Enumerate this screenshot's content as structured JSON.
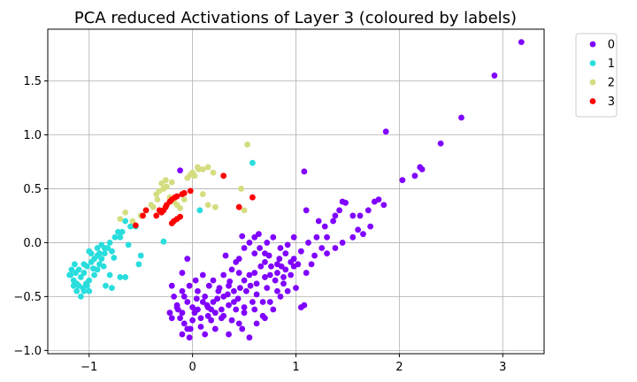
{
  "chart_data": {
    "type": "scatter",
    "title": "PCA reduced Activations of Layer 3 (coloured by labels)",
    "xlabel": "",
    "ylabel": "",
    "xlim": [
      -1.4,
      3.4
    ],
    "ylim": [
      -1.03,
      1.98
    ],
    "xticks": [
      -1,
      0,
      1,
      2,
      3
    ],
    "xtick_labels": [
      "−1",
      "0",
      "1",
      "2",
      "3"
    ],
    "yticks": [
      -1.0,
      -0.5,
      0.0,
      0.5,
      1.0,
      1.5
    ],
    "ytick_labels": [
      "−1.0",
      "−0.5",
      "0.0",
      "0.5",
      "1.0",
      "1.5"
    ],
    "grid": true,
    "legend_position": "outside-top-right",
    "series": [
      {
        "name": "0",
        "color": "#8000ff",
        "points": [
          [
            3.18,
            1.86
          ],
          [
            2.92,
            1.55
          ],
          [
            2.6,
            1.16
          ],
          [
            2.4,
            0.92
          ],
          [
            1.87,
            1.03
          ],
          [
            2.2,
            0.7
          ],
          [
            2.22,
            0.68
          ],
          [
            2.15,
            0.62
          ],
          [
            2.03,
            0.58
          ],
          [
            1.8,
            0.4
          ],
          [
            1.85,
            0.35
          ],
          [
            1.76,
            0.38
          ],
          [
            1.7,
            0.3
          ],
          [
            1.62,
            0.25
          ],
          [
            1.55,
            0.25
          ],
          [
            1.45,
            0.38
          ],
          [
            1.48,
            0.37
          ],
          [
            1.42,
            0.3
          ],
          [
            1.38,
            0.25
          ],
          [
            1.36,
            0.2
          ],
          [
            1.22,
            0.2
          ],
          [
            1.28,
            0.15
          ],
          [
            1.65,
            0.08
          ],
          [
            1.55,
            0.05
          ],
          [
            1.45,
            0.0
          ],
          [
            1.38,
            -0.05
          ],
          [
            1.3,
            -0.1
          ],
          [
            1.2,
            0.05
          ],
          [
            1.18,
            -0.12
          ],
          [
            1.1,
            0.3
          ],
          [
            1.08,
            0.66
          ],
          [
            1.12,
            0.0
          ],
          [
            1.05,
            -0.08
          ],
          [
            0.98,
            -0.15
          ],
          [
            0.9,
            -0.25
          ],
          [
            0.82,
            -0.2
          ],
          [
            0.75,
            -0.3
          ],
          [
            0.7,
            -0.18
          ],
          [
            0.6,
            -0.1
          ],
          [
            0.55,
            -0.3
          ],
          [
            0.5,
            -0.35
          ],
          [
            0.45,
            -0.28
          ],
          [
            0.4,
            -0.45
          ],
          [
            0.35,
            -0.4
          ],
          [
            0.3,
            -0.5
          ],
          [
            0.25,
            -0.45
          ],
          [
            0.2,
            -0.55
          ],
          [
            0.15,
            -0.6
          ],
          [
            0.1,
            -0.55
          ],
          [
            0.05,
            -0.62
          ],
          [
            0.0,
            -0.6
          ],
          [
            -0.05,
            -0.55
          ],
          [
            -0.1,
            -0.65
          ],
          [
            -0.15,
            -0.6
          ],
          [
            -0.12,
            -0.7
          ],
          [
            -0.08,
            -0.75
          ],
          [
            -0.02,
            -0.8
          ],
          [
            0.08,
            -0.78
          ],
          [
            0.18,
            -0.72
          ],
          [
            0.28,
            -0.7
          ],
          [
            0.38,
            -0.72
          ],
          [
            0.48,
            -0.8
          ],
          [
            0.55,
            -0.88
          ],
          [
            0.62,
            -0.75
          ],
          [
            0.7,
            -0.7
          ],
          [
            0.78,
            -0.62
          ],
          [
            0.85,
            -0.5
          ],
          [
            0.92,
            -0.45
          ],
          [
            1.0,
            -0.42
          ],
          [
            1.08,
            -0.58
          ],
          [
            1.05,
            -0.6
          ],
          [
            0.68,
            -0.55
          ],
          [
            0.72,
            -0.42
          ],
          [
            0.8,
            -0.35
          ],
          [
            0.88,
            -0.32
          ],
          [
            0.95,
            -0.3
          ],
          [
            0.62,
            -0.48
          ],
          [
            0.58,
            -0.55
          ],
          [
            0.5,
            -0.6
          ],
          [
            0.42,
            -0.62
          ],
          [
            0.35,
            -0.58
          ],
          [
            0.28,
            -0.62
          ],
          [
            0.22,
            -0.65
          ],
          [
            0.15,
            -0.68
          ],
          [
            0.08,
            -0.7
          ],
          [
            0.0,
            -0.72
          ],
          [
            -0.05,
            -0.8
          ],
          [
            -0.1,
            -0.85
          ],
          [
            -0.15,
            -0.58
          ],
          [
            -0.18,
            -0.5
          ],
          [
            -0.1,
            -0.45
          ],
          [
            -0.03,
            -0.4
          ],
          [
            0.03,
            -0.35
          ],
          [
            0.1,
            -0.3
          ],
          [
            0.2,
            -0.35
          ],
          [
            0.3,
            -0.3
          ],
          [
            0.38,
            -0.25
          ],
          [
            0.45,
            -0.15
          ],
          [
            0.5,
            -0.05
          ],
          [
            0.55,
            0.0
          ],
          [
            0.6,
            0.05
          ],
          [
            0.65,
            -0.05
          ],
          [
            0.72,
            0.0
          ],
          [
            0.78,
            0.05
          ],
          [
            0.85,
            -0.05
          ],
          [
            0.9,
            -0.1
          ],
          [
            0.95,
            -0.18
          ],
          [
            1.02,
            -0.2
          ],
          [
            0.48,
            0.06
          ],
          [
            0.42,
            -0.18
          ],
          [
            0.32,
            -0.12
          ],
          [
            -0.05,
            -0.15
          ],
          [
            -0.1,
            -0.28
          ],
          [
            -0.2,
            -0.4
          ],
          [
            -0.2,
            -0.7
          ],
          [
            -0.22,
            -0.65
          ],
          [
            -0.03,
            -0.88
          ],
          [
            0.12,
            -0.85
          ],
          [
            0.22,
            -0.8
          ],
          [
            0.35,
            -0.85
          ],
          [
            0.45,
            -0.75
          ],
          [
            0.5,
            -0.65
          ],
          [
            0.6,
            -0.62
          ],
          [
            0.68,
            -0.68
          ],
          [
            0.75,
            -0.55
          ],
          [
            0.82,
            -0.45
          ],
          [
            0.88,
            -0.38
          ],
          [
            0.98,
            -0.22
          ],
          [
            1.1,
            -0.28
          ],
          [
            1.15,
            -0.2
          ],
          [
            -0.12,
            0.67
          ],
          [
            0.02,
            -0.65
          ],
          [
            0.12,
            -0.5
          ],
          [
            0.24,
            -0.52
          ],
          [
            0.34,
            -0.48
          ],
          [
            0.44,
            -0.52
          ],
          [
            0.52,
            -0.45
          ],
          [
            0.62,
            -0.38
          ],
          [
            0.7,
            -0.32
          ],
          [
            0.76,
            -0.22
          ],
          [
            0.84,
            -0.15
          ],
          [
            0.92,
            -0.02
          ],
          [
            0.98,
            0.05
          ],
          [
            -0.08,
            -0.5
          ],
          [
            0.05,
            -0.45
          ],
          [
            0.16,
            -0.4
          ],
          [
            0.26,
            -0.42
          ],
          [
            0.36,
            -0.36
          ],
          [
            0.46,
            -0.42
          ],
          [
            0.56,
            -0.4
          ],
          [
            0.66,
            -0.22
          ],
          [
            0.74,
            -0.12
          ],
          [
            0.82,
            -0.28
          ],
          [
            0.14,
            -0.58
          ],
          [
            -0.14,
            -0.62
          ],
          [
            0.04,
            -0.52
          ],
          [
            0.18,
            -0.62
          ],
          [
            0.3,
            -0.68
          ],
          [
            0.4,
            -0.55
          ],
          [
            0.6,
            -0.28
          ],
          [
            0.7,
            -0.1
          ],
          [
            0.86,
            -0.22
          ],
          [
            1.3,
            0.05
          ],
          [
            1.6,
            0.12
          ],
          [
            1.72,
            0.15
          ],
          [
            1.25,
            -0.05
          ],
          [
            0.64,
            0.08
          ]
        ]
      },
      {
        "name": "1",
        "color": "#2adddd",
        "points": [
          [
            0.58,
            0.74
          ],
          [
            0.07,
            0.3
          ],
          [
            -0.28,
            0.01
          ],
          [
            -0.5,
            -0.12
          ],
          [
            -0.52,
            -0.2
          ],
          [
            -0.6,
            0.15
          ],
          [
            -0.65,
            0.2
          ],
          [
            -0.72,
            0.1
          ],
          [
            -0.75,
            0.05
          ],
          [
            -0.8,
            0.0
          ],
          [
            -0.82,
            -0.05
          ],
          [
            -0.85,
            -0.1
          ],
          [
            -0.88,
            -0.15
          ],
          [
            -0.9,
            -0.2
          ],
          [
            -0.92,
            -0.25
          ],
          [
            -0.95,
            -0.3
          ],
          [
            -1.0,
            -0.35
          ],
          [
            -1.02,
            -0.4
          ],
          [
            -1.05,
            -0.45
          ],
          [
            -1.08,
            -0.5
          ],
          [
            -1.12,
            -0.45
          ],
          [
            -1.15,
            -0.35
          ],
          [
            -1.18,
            -0.3
          ],
          [
            -1.1,
            -0.25
          ],
          [
            -1.05,
            -0.2
          ],
          [
            -0.98,
            -0.1
          ],
          [
            -0.92,
            -0.05
          ],
          [
            -0.86,
            -0.22
          ],
          [
            -0.8,
            -0.3
          ],
          [
            -0.78,
            -0.42
          ],
          [
            -0.84,
            -0.4
          ],
          [
            -1.0,
            -0.08
          ],
          [
            -1.15,
            -0.4
          ],
          [
            -1.12,
            -0.38
          ],
          [
            -1.08,
            -0.32
          ],
          [
            -1.05,
            -0.28
          ],
          [
            -1.02,
            -0.22
          ],
          [
            -0.98,
            -0.18
          ],
          [
            -0.95,
            -0.15
          ],
          [
            -0.9,
            -0.1
          ],
          [
            -0.88,
            -0.02
          ],
          [
            -0.7,
            -0.32
          ],
          [
            -0.65,
            -0.32
          ],
          [
            -0.62,
            -0.02
          ],
          [
            -0.55,
            0.15
          ],
          [
            -1.17,
            -0.25
          ],
          [
            -1.19,
            -0.3
          ],
          [
            -1.13,
            -0.28
          ],
          [
            -1.1,
            -0.4
          ],
          [
            -1.06,
            -0.42
          ],
          [
            -1.03,
            -0.38
          ],
          [
            -0.96,
            -0.24
          ],
          [
            -0.92,
            -0.12
          ],
          [
            -0.85,
            -0.05
          ],
          [
            -0.78,
            -0.08
          ],
          [
            -0.76,
            -0.14
          ],
          [
            -0.7,
            0.05
          ],
          [
            -0.68,
            0.1
          ],
          [
            -1.14,
            -0.2
          ],
          [
            -1.0,
            -0.45
          ]
        ]
      },
      {
        "name": "2",
        "color": "#d4dd80",
        "points": [
          [
            0.53,
            0.91
          ],
          [
            0.47,
            0.5
          ],
          [
            0.5,
            0.3
          ],
          [
            0.15,
            0.7
          ],
          [
            0.2,
            0.65
          ],
          [
            0.1,
            0.68
          ],
          [
            0.05,
            0.7
          ],
          [
            0.0,
            0.65
          ],
          [
            -0.05,
            0.6
          ],
          [
            0.02,
            0.62
          ],
          [
            -0.25,
            0.52
          ],
          [
            -0.3,
            0.55
          ],
          [
            -0.28,
            0.5
          ],
          [
            -0.32,
            0.48
          ],
          [
            -0.35,
            0.45
          ],
          [
            -0.22,
            0.42
          ],
          [
            -0.18,
            0.38
          ],
          [
            -0.15,
            0.35
          ],
          [
            -0.12,
            0.32
          ],
          [
            -0.4,
            0.35
          ],
          [
            -0.45,
            0.3
          ],
          [
            -0.5,
            0.25
          ],
          [
            -0.58,
            0.2
          ],
          [
            -0.65,
            0.28
          ],
          [
            -0.7,
            0.22
          ],
          [
            0.1,
            0.45
          ],
          [
            0.15,
            0.35
          ],
          [
            0.22,
            0.33
          ],
          [
            -0.2,
            0.56
          ],
          [
            -0.26,
            0.58
          ],
          [
            -0.08,
            0.4
          ],
          [
            0.06,
            0.68
          ],
          [
            -0.02,
            0.63
          ],
          [
            -0.34,
            0.4
          ],
          [
            -0.38,
            0.33
          ]
        ]
      },
      {
        "name": "3",
        "color": "#ff0000",
        "points": [
          [
            0.3,
            0.62
          ],
          [
            0.58,
            0.42
          ],
          [
            0.45,
            0.33
          ],
          [
            -0.02,
            0.48
          ],
          [
            -0.1,
            0.45
          ],
          [
            -0.15,
            0.43
          ],
          [
            -0.2,
            0.4
          ],
          [
            -0.25,
            0.35
          ],
          [
            -0.28,
            0.3
          ],
          [
            -0.3,
            0.28
          ],
          [
            -0.35,
            0.25
          ],
          [
            -0.45,
            0.3
          ],
          [
            -0.48,
            0.25
          ],
          [
            -0.55,
            0.16
          ],
          [
            -0.2,
            0.18
          ],
          [
            -0.15,
            0.22
          ],
          [
            -0.12,
            0.24
          ],
          [
            -0.18,
            0.2
          ],
          [
            -0.22,
            0.38
          ],
          [
            -0.26,
            0.33
          ],
          [
            -0.32,
            0.3
          ],
          [
            -0.08,
            0.46
          ],
          [
            -0.17,
            0.42
          ]
        ]
      }
    ]
  }
}
